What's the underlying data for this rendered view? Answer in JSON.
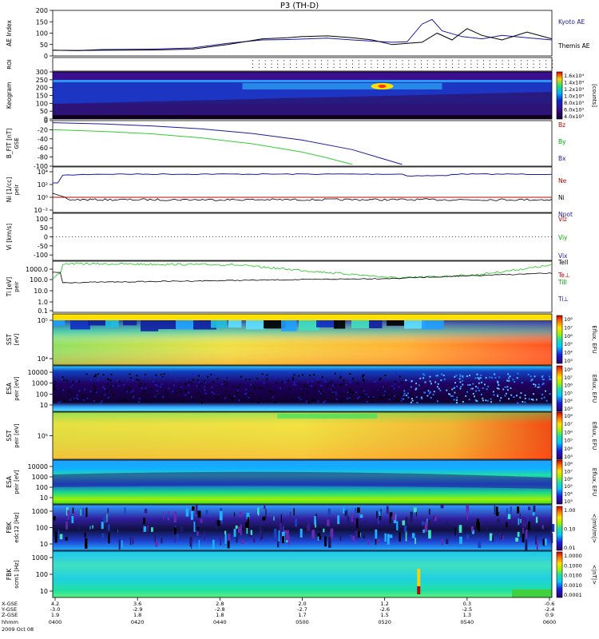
{
  "title": "P3 (TH-D)",
  "footer": {
    "rows": [
      {
        "label": "X-GSE",
        "values": [
          "4.2",
          "3.6",
          "2.8",
          "2.0",
          "1.2",
          "0.3",
          "-0.6"
        ]
      },
      {
        "label": "Y-GSE",
        "values": [
          "-3.0",
          "-2.9",
          "-2.8",
          "-2.7",
          "-2.6",
          "-2.5",
          "-2.4"
        ]
      },
      {
        "label": "Z-GSE",
        "values": [
          "1.9",
          "1.8",
          "1.8",
          "1.7",
          "1.5",
          "1.3",
          "0.9"
        ]
      }
    ],
    "time_label": "hhmm",
    "date": "2009 Oct 08",
    "times": [
      "0400",
      "0420",
      "0440",
      "0500",
      "0520",
      "0540",
      "0600"
    ]
  },
  "colorbars": {
    "kaleidoscope": {
      "title": "[counts]",
      "ticks": [
        "1.6x10⁴",
        "1.4x10⁴",
        "1.2x10⁴",
        "1.0x10⁴",
        "8.0x10³",
        "6.0x10³",
        "4.0x10³"
      ]
    },
    "eflux": {
      "title": "Eflux, EFU",
      "ticks": [
        "10⁸",
        "10⁷",
        "10⁶",
        "10⁵",
        "10⁴",
        "10³"
      ]
    },
    "fbk1": {
      "title": "<|mV/m|>",
      "ticks": [
        "1.00",
        "0.10",
        "0.01"
      ]
    },
    "fbk2": {
      "title": "<|nT|>",
      "ticks": [
        "1.0000",
        "0.1000",
        "0.0100",
        "0.0010",
        "0.0001"
      ]
    }
  },
  "chart_data": [
    {
      "panel": "ae",
      "type": "line",
      "ylabel": "AE Index",
      "ylim": [
        0,
        200
      ],
      "yticks": [
        "200",
        "150",
        "100",
        "50",
        "0"
      ],
      "series": [
        {
          "name": "Kyoto AE",
          "color": "#1a1aa6",
          "x": [
            0,
            0.05,
            0.1,
            0.2,
            0.28,
            0.35,
            0.42,
            0.47,
            0.5,
            0.55,
            0.6,
            0.64,
            0.68,
            0.71,
            0.74,
            0.76,
            0.78,
            0.82,
            0.86,
            0.9,
            0.95,
            1.0
          ],
          "y": [
            25,
            24,
            28,
            30,
            35,
            55,
            70,
            72,
            74,
            78,
            70,
            65,
            60,
            62,
            140,
            160,
            110,
            85,
            75,
            90,
            80,
            70
          ]
        },
        {
          "name": "Themis AE",
          "color": "#000000",
          "x": [
            0,
            0.05,
            0.1,
            0.2,
            0.28,
            0.35,
            0.42,
            0.47,
            0.5,
            0.55,
            0.6,
            0.64,
            0.68,
            0.71,
            0.74,
            0.77,
            0.8,
            0.83,
            0.86,
            0.9,
            0.95,
            1.0
          ],
          "y": [
            25,
            24,
            25,
            26,
            30,
            50,
            75,
            80,
            85,
            88,
            80,
            70,
            50,
            55,
            60,
            100,
            70,
            120,
            90,
            70,
            105,
            75
          ]
        }
      ]
    },
    {
      "panel": "roi",
      "type": "scatter",
      "ylabel": "ROI",
      "x_start": 0.4,
      "x_step": 0.0125,
      "rows": [
        0.2,
        0.45,
        0.7
      ]
    },
    {
      "panel": "kgram",
      "type": "heatmap",
      "ylabel": "Keogram",
      "ylim": [
        0,
        300
      ],
      "yticks": [
        "300",
        "250",
        "200",
        "150",
        "100",
        "50",
        "0"
      ]
    },
    {
      "panel": "bfit",
      "type": "line",
      "ylabel": "B_FIT [nT]",
      "ylabel2": "GSE",
      "ylim": [
        -110,
        0
      ],
      "yticks": [
        "0",
        "-20",
        "-40",
        "-60",
        "-80",
        "-100"
      ],
      "legend": [
        {
          "name": "Bz",
          "color": "#c00000"
        },
        {
          "name": "By",
          "color": "#00aa00"
        },
        {
          "name": "Bx",
          "color": "#1a1aa6"
        }
      ],
      "series": [
        {
          "name": "By",
          "color": "#33cc33",
          "x": [
            0,
            0.1,
            0.2,
            0.3,
            0.4,
            0.5,
            0.55,
            0.6
          ],
          "y": [
            -22,
            -26,
            -32,
            -42,
            -56,
            -76,
            -90,
            -106
          ]
        },
        {
          "name": "Bx",
          "color": "#1a1aa6",
          "x": [
            0,
            0.1,
            0.2,
            0.3,
            0.4,
            0.5,
            0.6,
            0.65,
            0.7
          ],
          "y": [
            -5,
            -8,
            -13,
            -20,
            -31,
            -47,
            -70,
            -88,
            -106
          ]
        }
      ]
    },
    {
      "panel": "ni",
      "type": "line",
      "ylog": true,
      "ylabel": "Ni [1/cc]",
      "ylabel2": "peir",
      "yticks": [
        "10⁴",
        "10²",
        "10⁰",
        "10⁻²"
      ],
      "legend": [
        {
          "name": "Ne",
          "color": "#c00000"
        },
        {
          "name": "Ni",
          "color": "#000000"
        },
        {
          "name": "Npot",
          "color": "#1a1aa6"
        }
      ]
    },
    {
      "panel": "vi",
      "type": "line",
      "ylabel": "Vi [km/s]",
      "ylim": [
        -130,
        130
      ],
      "yticks": [
        "100",
        "50",
        "0",
        "-50",
        "-100"
      ],
      "legend": [
        {
          "name": "Viz",
          "color": "#c00000"
        },
        {
          "name": "Viy",
          "color": "#00aa00"
        },
        {
          "name": "Vix",
          "color": "#1a1aa6"
        }
      ]
    },
    {
      "panel": "ti",
      "type": "line",
      "ylog": true,
      "ylabel": "Ti [eV]",
      "ylabel2": "peir",
      "yticks": [
        "1000.0",
        "100.0",
        "10.0",
        "1.0",
        "0.1"
      ],
      "legend": [
        {
          "name": "TeII",
          "color": "#000000"
        },
        {
          "name": "Te⊥",
          "color": "#c00000"
        },
        {
          "name": "TiII",
          "color": "#00aa00"
        },
        {
          "name": "Ti⊥",
          "color": "#1a1aa6"
        }
      ]
    },
    {
      "panel": "sst_e",
      "type": "heatmap",
      "ylabel": "SST",
      "ylabel2": "[eV]",
      "yticks": [
        "10⁵",
        "10⁴"
      ]
    },
    {
      "panel": "esa_e",
      "type": "heatmap",
      "ylabel": "ESA",
      "ylabel2": "peir [eV]",
      "yticks": [
        "10000",
        "1000",
        "100",
        "10"
      ]
    },
    {
      "panel": "sst_i",
      "type": "heatmap",
      "ylabel": "SST",
      "ylabel2": "peir [eV]",
      "yticks": [
        "10⁵"
      ]
    },
    {
      "panel": "esa_i",
      "type": "heatmap",
      "ylabel": "ESA",
      "ylabel2": "peir [eV]",
      "yticks": [
        "10000",
        "1000",
        "100",
        "10"
      ]
    },
    {
      "panel": "fbk_e",
      "type": "heatmap",
      "ylabel": "FBK",
      "ylabel2": "edc12 [Hz]",
      "yticks": [
        "1000",
        "100",
        "10"
      ]
    },
    {
      "panel": "fbk_b",
      "type": "heatmap",
      "ylabel": "FBK",
      "ylabel2": "scm1 [Hz]",
      "yticks": [
        "1000",
        "100",
        "10"
      ]
    }
  ]
}
